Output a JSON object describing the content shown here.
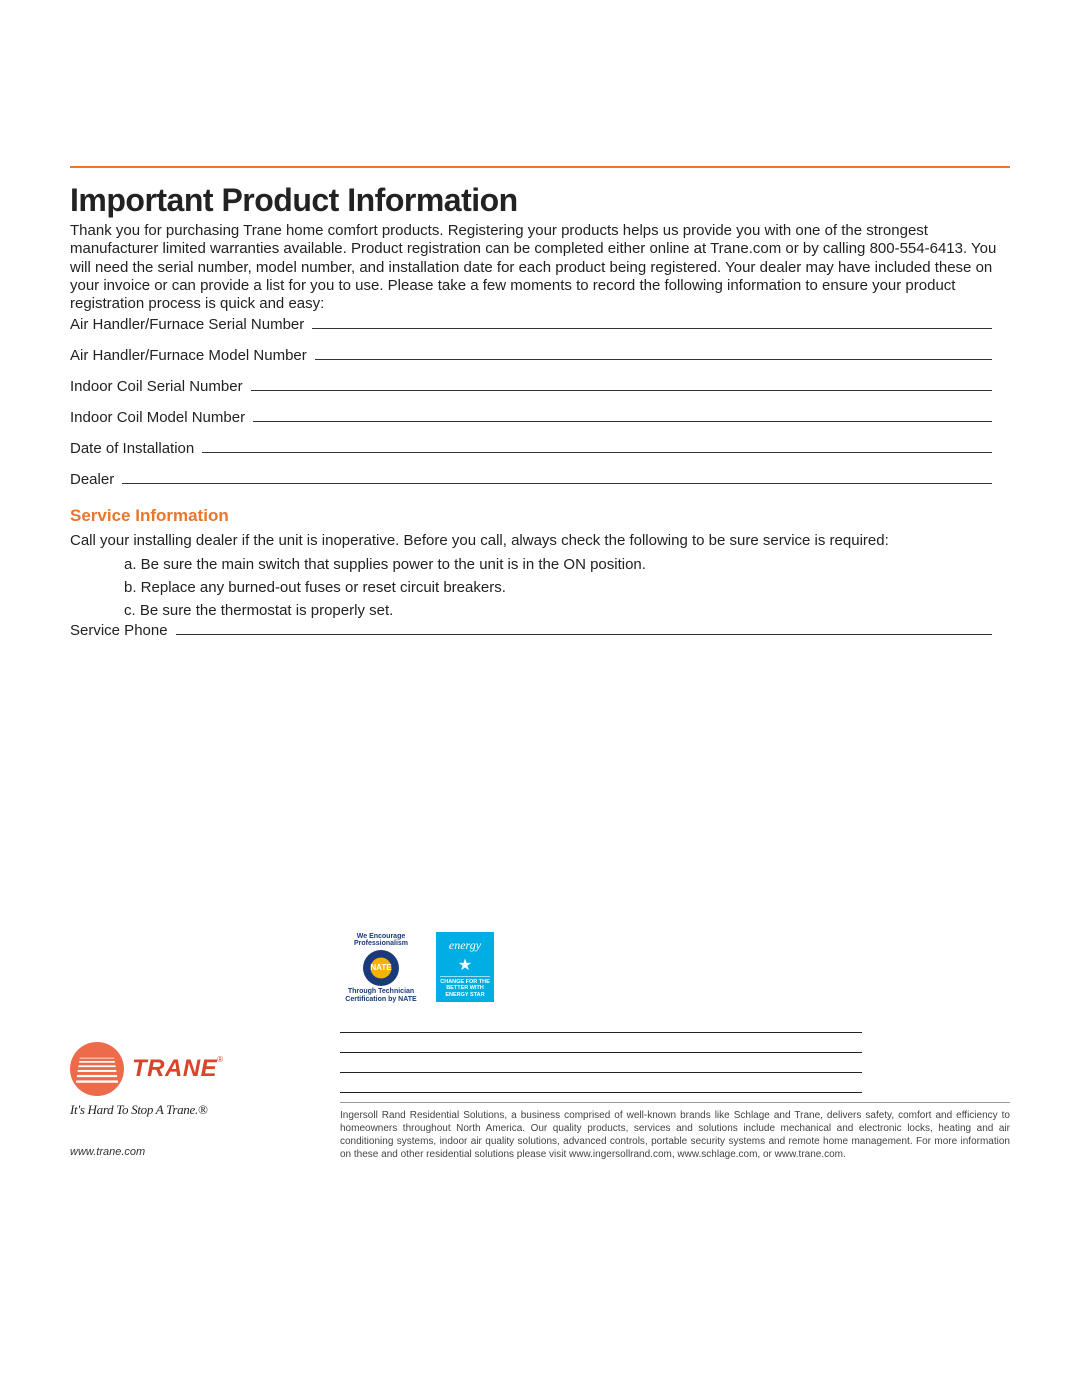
{
  "colors": {
    "accent": "#e8762d",
    "logo_circle": "#ed6b4a",
    "logo_text": "#d9442a",
    "energy_blue": "#00aee6",
    "nate_blue": "#1a3a7a",
    "nate_gold": "#f5b300",
    "rule": "#333333"
  },
  "title": "Important Product Information",
  "intro": "Thank you for purchasing Trane home comfort products. Registering your products helps us provide you with one of the strongest manufacturer limited warranties available. Product registration can be completed either online at Trane.com or by calling 800-554-6413. You will need the serial number, model number, and installation date for each product being registered. Your dealer may have included these on your invoice or can provide a list for you to use. Please take a few moments to record the following information to ensure your product registration process is quick and easy:",
  "form": {
    "fields": [
      "Air Handler/Furnace Serial Number",
      "Air Handler/Furnace Model Number",
      "Indoor Coil Serial Number",
      "Indoor Coil Model Number",
      "Date of Installation",
      "Dealer"
    ]
  },
  "service": {
    "heading": "Service Information",
    "intro": "Call your installing dealer if the unit is inoperative. Before you call, always check the following to be sure service is required:",
    "items": [
      "a.  Be sure the main switch that supplies power to the unit is in the ON position.",
      "b.  Replace any burned-out fuses or reset circuit breakers.",
      "c.  Be sure the thermostat is properly set."
    ],
    "phone_label": "Service Phone"
  },
  "badges": {
    "nate": {
      "top": "We Encourage Professionalism",
      "center": "NATE",
      "bottom": "Through Technician Certification by NATE"
    },
    "energy": {
      "script": "energy",
      "text": "CHANGE FOR THE BETTER WITH ENERGY STAR"
    }
  },
  "note_line_count": 4,
  "brand": {
    "name": "TRANE",
    "registered": "®",
    "tagline": "It's Hard To Stop A Trane.®",
    "website": "www.trane.com"
  },
  "legal": "Ingersoll Rand Residential Solutions, a business comprised of well-known brands like Schlage and Trane, delivers safety, comfort and efficiency to homeowners throughout North America. Our quality products, services and solutions include mechanical and electronic locks, heating and air conditioning systems, indoor air quality solutions, advanced controls, portable security systems and remote home management. For more information on these and other residential solutions please visit www.ingersollrand.com, www.schlage.com, or www.trane.com."
}
